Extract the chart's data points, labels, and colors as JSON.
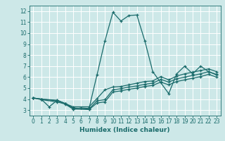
{
  "xlabel": "Humidex (Indice chaleur)",
  "bg_color": "#cde8e8",
  "line_color": "#1a6b6b",
  "grid_color": "#b8d8d8",
  "xlim": [
    -0.5,
    23.5
  ],
  "ylim": [
    2.5,
    12.5
  ],
  "xticks": [
    0,
    1,
    2,
    3,
    4,
    5,
    6,
    7,
    8,
    9,
    10,
    11,
    12,
    13,
    14,
    15,
    16,
    17,
    18,
    19,
    20,
    21,
    22,
    23
  ],
  "yticks": [
    3,
    4,
    5,
    6,
    7,
    8,
    9,
    10,
    11,
    12
  ],
  "series": [
    {
      "x": [
        0,
        1,
        2,
        3,
        4,
        5,
        6,
        7,
        8,
        9,
        10,
        11,
        12,
        13,
        14,
        15,
        16,
        17,
        18,
        19,
        20,
        21,
        22,
        23
      ],
      "y": [
        4.1,
        4.0,
        3.3,
        3.9,
        3.6,
        3.1,
        3.2,
        3.15,
        6.2,
        9.3,
        11.9,
        11.1,
        11.6,
        11.65,
        9.3,
        6.5,
        5.5,
        4.5,
        6.3,
        7.0,
        6.3,
        7.0,
        6.5,
        6.2
      ]
    },
    {
      "x": [
        0,
        1,
        3,
        4,
        5,
        7,
        8,
        9,
        10,
        11,
        12,
        13,
        14,
        15,
        16,
        17,
        18,
        19,
        20,
        21,
        22,
        23
      ],
      "y": [
        4.1,
        4.0,
        3.9,
        3.6,
        3.3,
        3.3,
        4.05,
        4.85,
        5.1,
        5.15,
        5.3,
        5.45,
        5.6,
        5.65,
        6.05,
        5.75,
        6.1,
        6.3,
        6.45,
        6.6,
        6.75,
        6.5
      ]
    },
    {
      "x": [
        0,
        1,
        3,
        4,
        5,
        7,
        8,
        9,
        10,
        11,
        12,
        13,
        14,
        15,
        16,
        17,
        18,
        19,
        20,
        21,
        22,
        23
      ],
      "y": [
        4.1,
        4.0,
        3.85,
        3.6,
        3.2,
        3.1,
        3.85,
        3.95,
        4.85,
        4.95,
        5.1,
        5.2,
        5.35,
        5.45,
        5.8,
        5.55,
        5.85,
        6.0,
        6.15,
        6.3,
        6.5,
        6.25
      ]
    },
    {
      "x": [
        0,
        1,
        3,
        4,
        5,
        7,
        8,
        9,
        10,
        11,
        12,
        13,
        14,
        15,
        16,
        17,
        18,
        19,
        20,
        21,
        22,
        23
      ],
      "y": [
        4.1,
        3.95,
        3.75,
        3.55,
        3.1,
        3.05,
        3.65,
        3.75,
        4.65,
        4.75,
        4.9,
        5.0,
        5.15,
        5.25,
        5.55,
        5.3,
        5.6,
        5.75,
        5.9,
        6.05,
        6.25,
        6.0
      ]
    }
  ]
}
